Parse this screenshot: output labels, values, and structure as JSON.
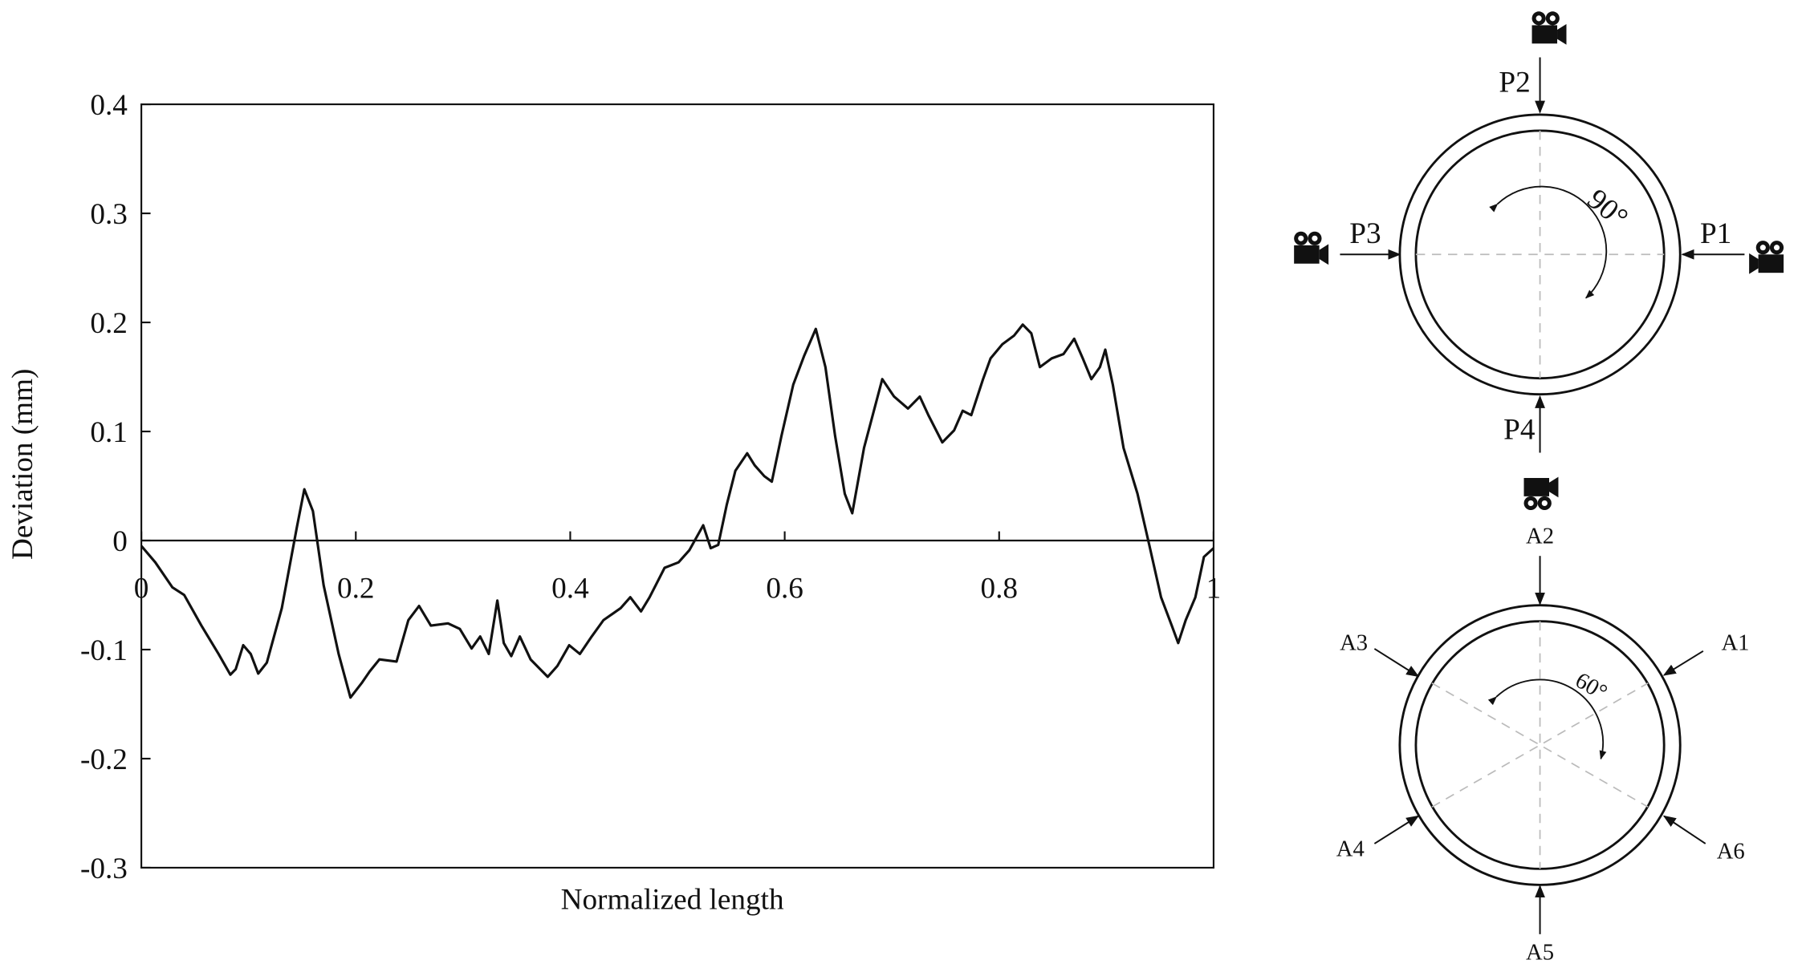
{
  "chart_data": {
    "type": "line",
    "ylabel": "Deviation (mm)",
    "xlabel": "Normalized length",
    "xlim": [
      0,
      1
    ],
    "ylim": [
      -0.3,
      0.4
    ],
    "xticks": [
      0,
      0.2,
      0.4,
      0.6,
      0.8,
      1
    ],
    "yticks": [
      0.4,
      0.3,
      0.2,
      0.1,
      0,
      -0.1,
      -0.2,
      -0.3
    ],
    "series": [
      {
        "color": "#111111",
        "x": [
          0,
          0.013,
          0.029,
          0.04,
          0.056,
          0.072,
          0.083,
          0.088,
          0.095,
          0.102,
          0.109,
          0.117,
          0.131,
          0.145,
          0.152,
          0.16,
          0.17,
          0.184,
          0.195,
          0.206,
          0.213,
          0.222,
          0.238,
          0.249,
          0.259,
          0.27,
          0.286,
          0.297,
          0.308,
          0.316,
          0.324,
          0.332,
          0.338,
          0.345,
          0.353,
          0.363,
          0.379,
          0.388,
          0.399,
          0.409,
          0.42,
          0.431,
          0.447,
          0.456,
          0.466,
          0.474,
          0.488,
          0.501,
          0.511,
          0.524,
          0.531,
          0.538,
          0.546,
          0.554,
          0.565,
          0.572,
          0.581,
          0.588,
          0.597,
          0.608,
          0.618,
          0.629,
          0.638,
          0.647,
          0.656,
          0.663,
          0.674,
          0.691,
          0.702,
          0.715,
          0.726,
          0.734,
          0.747,
          0.758,
          0.766,
          0.774,
          0.785,
          0.792,
          0.803,
          0.814,
          0.822,
          0.83,
          0.838,
          0.849,
          0.86,
          0.87,
          0.878,
          0.886,
          0.894,
          0.899,
          0.906,
          0.916,
          0.929,
          0.94,
          0.951,
          0.961,
          0.967,
          0.974,
          0.983,
          0.991,
          1
        ],
        "values": [
          -0.005,
          -0.02,
          -0.043,
          -0.05,
          -0.078,
          -0.104,
          -0.123,
          -0.118,
          -0.096,
          -0.104,
          -0.122,
          -0.112,
          -0.062,
          0.012,
          0.047,
          0.027,
          -0.041,
          -0.104,
          -0.144,
          -0.13,
          -0.12,
          -0.109,
          -0.111,
          -0.073,
          -0.06,
          -0.078,
          -0.076,
          -0.081,
          -0.099,
          -0.088,
          -0.104,
          -0.055,
          -0.094,
          -0.106,
          -0.088,
          -0.109,
          -0.125,
          -0.115,
          -0.096,
          -0.104,
          -0.088,
          -0.073,
          -0.062,
          -0.052,
          -0.065,
          -0.052,
          -0.025,
          -0.02,
          -0.009,
          0.014,
          -0.007,
          -0.004,
          0.033,
          0.064,
          0.08,
          0.069,
          0.059,
          0.054,
          0.096,
          0.143,
          0.169,
          0.194,
          0.159,
          0.096,
          0.043,
          0.025,
          0.085,
          0.148,
          0.132,
          0.121,
          0.132,
          0.115,
          0.09,
          0.101,
          0.119,
          0.115,
          0.148,
          0.167,
          0.18,
          0.188,
          0.198,
          0.19,
          0.159,
          0.167,
          0.171,
          0.185,
          0.167,
          0.148,
          0.159,
          0.175,
          0.143,
          0.085,
          0.043,
          -0.004,
          -0.052,
          -0.078,
          -0.094,
          -0.073,
          -0.052,
          -0.015,
          -0.007
        ]
      }
    ]
  },
  "diagrams": {
    "top": {
      "labels": [
        "P1",
        "P2",
        "P3",
        "P4"
      ],
      "angle": "90°"
    },
    "bottom": {
      "labels": [
        "A1",
        "A2",
        "A3",
        "A4",
        "A5",
        "A6"
      ],
      "angle": "60°"
    }
  }
}
